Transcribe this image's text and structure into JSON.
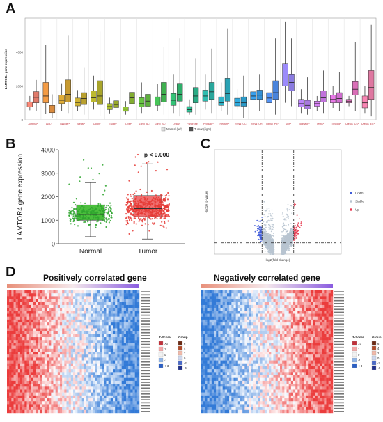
{
  "panel_letters": [
    "A",
    "B",
    "C",
    "D"
  ],
  "legend_swatch_colors": [
    "#e0e0e0",
    "#555555"
  ],
  "chart_data": [
    {
      "type": "box",
      "panel": "A",
      "ylabel": "LAMTOR4 gene expression",
      "ylim": [
        0,
        6000
      ],
      "yticks": [
        0,
        2000,
        4000
      ],
      "grid": true,
      "legend": {
        "position": "bottom",
        "entries": [
          "Normal (left)",
          "Tumor (right)"
        ]
      },
      "series": [
        {
          "name": "Normal (left)"
        },
        {
          "name": "Tumor (right)"
        }
      ],
      "categories": [
        {
          "label": "Adrenal*",
          "color": "#e07a6a",
          "normal": [
            560,
            760,
            920,
            1060,
            1400
          ],
          "tumor": [
            520,
            1000,
            1320,
            1660,
            2350
          ]
        },
        {
          "label": "AML*",
          "color": "#d98a3d",
          "normal": [
            350,
            1000,
            1400,
            2200,
            4400
          ],
          "tumor": [
            80,
            420,
            640,
            850,
            1500
          ]
        },
        {
          "label": "Bladder*",
          "color": "#c79a30",
          "normal": [
            500,
            950,
            1150,
            1450,
            2150
          ],
          "tumor": [
            400,
            1050,
            1500,
            2350,
            5000
          ]
        },
        {
          "label": "Breast*",
          "color": "#b9a02e",
          "normal": [
            500,
            820,
            1020,
            1280,
            1750
          ],
          "tumor": [
            300,
            900,
            1250,
            1600,
            3100
          ]
        },
        {
          "label": "Colon*",
          "color": "#a9a52a",
          "normal": [
            600,
            1050,
            1300,
            1700,
            2600
          ],
          "tumor": [
            200,
            900,
            1400,
            2300,
            5200
          ]
        },
        {
          "label": "Esoph*",
          "color": "#98a82a",
          "normal": [
            380,
            600,
            780,
            950,
            1300
          ],
          "tumor": [
            200,
            720,
            900,
            1120,
            1800
          ]
        },
        {
          "label": "Liver*",
          "color": "#82ad30",
          "normal": [
            300,
            500,
            630,
            760,
            1100
          ],
          "tumor": [
            250,
            950,
            1300,
            1620,
            3150
          ]
        },
        {
          "label": "Lung_AC*",
          "color": "#5db03c",
          "normal": [
            400,
            750,
            950,
            1300,
            2200
          ],
          "tumor": [
            250,
            800,
            1100,
            1500,
            3100
          ]
        },
        {
          "label": "Lung_SC*",
          "color": "#3fb04f",
          "normal": [
            500,
            850,
            1050,
            1350,
            2100
          ],
          "tumor": [
            300,
            1050,
            1500,
            2200,
            4300
          ]
        },
        {
          "label": "Ovary*",
          "color": "#2eae6a",
          "normal": [
            400,
            850,
            1150,
            1550,
            2700
          ],
          "tumor": [
            200,
            1100,
            1500,
            2150,
            4800
          ]
        },
        {
          "label": "Pancreas*",
          "color": "#2aab85",
          "normal": [
            300,
            450,
            600,
            780,
            1200
          ],
          "tumor": [
            300,
            1000,
            1400,
            1900,
            3600
          ]
        },
        {
          "label": "Prostate*",
          "color": "#2aa79c",
          "normal": [
            600,
            1100,
            1400,
            1750,
            2700
          ],
          "tumor": [
            400,
            1200,
            1650,
            2200,
            4200
          ]
        },
        {
          "label": "Rectum*",
          "color": "#2aa2b4",
          "normal": [
            500,
            850,
            1000,
            1350,
            2200
          ],
          "tumor": [
            300,
            1100,
            1550,
            2450,
            5400
          ]
        },
        {
          "label": "Renal_CC",
          "color": "#2b9ac8",
          "normal": [
            600,
            820,
            1020,
            1270,
            1800
          ],
          "tumor": [
            100,
            800,
            1000,
            1350,
            2600
          ]
        },
        {
          "label": "Renal_CH",
          "color": "#3290d6",
          "normal": [
            800,
            1200,
            1400,
            1650,
            2300
          ],
          "tumor": [
            500,
            1200,
            1450,
            1750,
            2700
          ]
        },
        {
          "label": "Renal_PA*",
          "color": "#4a84dc",
          "normal": [
            500,
            1000,
            1280,
            1600,
            2600
          ],
          "tumor": [
            300,
            1200,
            1600,
            2300,
            4800
          ]
        },
        {
          "label": "Skin*",
          "color": "#8a7be0",
          "normal": [
            1000,
            2000,
            2400,
            3300,
            5800
          ],
          "tumor": [
            800,
            1700,
            2200,
            2700,
            4800
          ]
        },
        {
          "label": "Stomach*",
          "color": "#a878e0",
          "normal": [
            400,
            750,
            950,
            1200,
            1800
          ],
          "tumor": [
            300,
            650,
            850,
            1150,
            2500
          ]
        },
        {
          "label": "Testis*",
          "color": "#c172dc",
          "normal": [
            500,
            800,
            950,
            1100,
            1400
          ],
          "tumor": [
            400,
            1050,
            1300,
            1700,
            2900
          ]
        },
        {
          "label": "Thyroid*",
          "color": "#d06dcf",
          "normal": [
            700,
            1000,
            1200,
            1450,
            2000
          ],
          "tumor": [
            500,
            1000,
            1250,
            1600,
            2800
          ]
        },
        {
          "label": "Uterus_CS*",
          "color": "#d96fb7",
          "normal": [
            800,
            1000,
            1100,
            1200,
            1400
          ],
          "tumor": [
            500,
            1450,
            1800,
            2250,
            4600
          ]
        },
        {
          "label": "Uterus_EC*",
          "color": "#de77a0",
          "normal": [
            400,
            700,
            1000,
            1400,
            2000
          ],
          "tumor": [
            200,
            1200,
            1900,
            2900,
            5600
          ]
        }
      ]
    },
    {
      "type": "box",
      "panel": "B",
      "ylabel": "LAMTOR4 gene expression",
      "ylim": [
        0,
        4000
      ],
      "yticks": [
        0,
        1000,
        2000,
        3000,
        4000
      ],
      "annotation": "p < 0.000",
      "categories": [
        {
          "label": "Normal",
          "color": "#4bbf3d",
          "stats": [
            300,
            1000,
            1250,
            1650,
            2600
          ],
          "jitter_range": [
            200,
            3800
          ]
        },
        {
          "label": "Tumor",
          "color": "#f07070",
          "stats": [
            200,
            1150,
            1500,
            2050,
            3400
          ],
          "jitter_range": [
            100,
            3900
          ]
        }
      ],
      "point_colors": [
        "#2ea52e",
        "#e53935"
      ]
    },
    {
      "type": "scatter",
      "panel": "C",
      "xlabel": "log2(fold change)",
      "ylabel": "-log10 (p-value)",
      "legend": {
        "position": "right",
        "entries": [
          "Down",
          "Stable",
          "Up"
        ]
      },
      "series": [
        {
          "name": "Down",
          "color": "#3f5bd9"
        },
        {
          "name": "Stable",
          "color": "#b8c4d0"
        },
        {
          "name": "Up",
          "color": "#e8384f"
        }
      ],
      "cutoffs": {
        "x": [
          -1,
          1
        ],
        "y": 1.3
      }
    },
    {
      "type": "heatmap",
      "panel": "D",
      "maps": [
        {
          "title": "Positively correlated gene",
          "direction": "positive"
        },
        {
          "title": "Negatively correlated gene",
          "direction": "negative"
        }
      ],
      "zscore_legend": {
        "title": "Z-Score",
        "entries": [
          ">3",
          "1",
          "0",
          "-1",
          "<-3"
        ]
      },
      "group_legend": {
        "title": "Group",
        "entries": [
          "6",
          "4",
          "2",
          "0",
          "-2",
          "-4"
        ]
      }
    }
  ]
}
